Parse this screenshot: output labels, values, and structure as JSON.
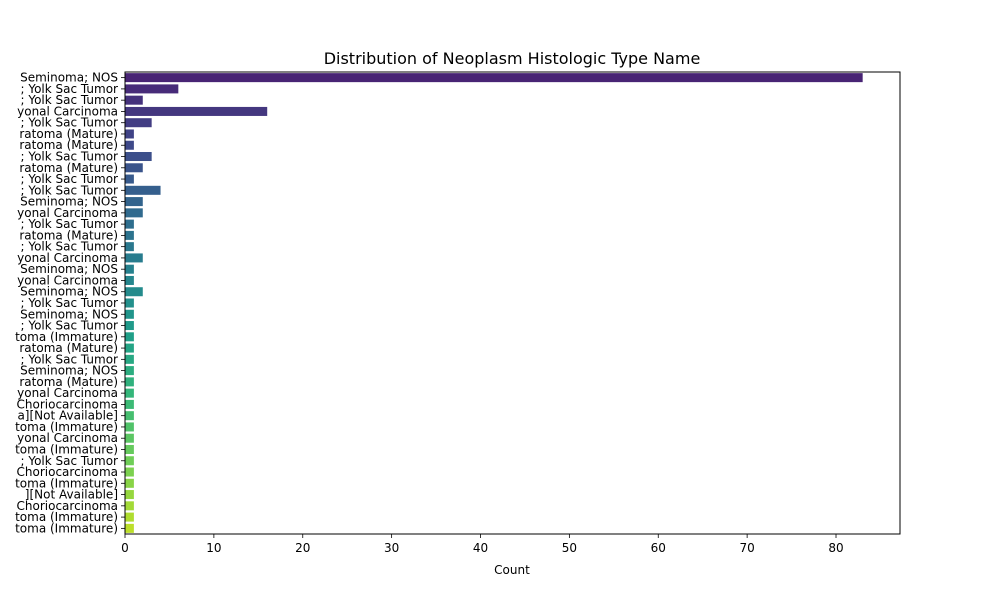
{
  "chart_data": {
    "type": "bar",
    "orientation": "horizontal",
    "title": "Distribution of Neoplasm Histologic Type Name",
    "xlabel": "Count",
    "ylabel": "",
    "xlim": [
      0,
      87.2
    ],
    "xticks": [
      0,
      10,
      20,
      30,
      40,
      50,
      60,
      70,
      80
    ],
    "grid": false,
    "legend": "none",
    "palette": "viridis",
    "categories": [
      "Seminoma; NOS",
      "; Yolk Sac Tumor",
      "; Yolk Sac Tumor",
      "yonal Carcinoma",
      "; Yolk Sac Tumor",
      "ratoma (Mature)",
      "ratoma (Mature)",
      "; Yolk Sac Tumor",
      "ratoma (Mature)",
      "; Yolk Sac Tumor",
      "; Yolk Sac Tumor",
      "Seminoma; NOS",
      "yonal Carcinoma",
      "; Yolk Sac Tumor",
      "ratoma (Mature)",
      "; Yolk Sac Tumor",
      "yonal Carcinoma",
      "Seminoma; NOS",
      "yonal Carcinoma",
      "Seminoma; NOS",
      "; Yolk Sac Tumor",
      "Seminoma; NOS",
      "; Yolk Sac Tumor",
      "toma (Immature)",
      "ratoma (Mature)",
      "; Yolk Sac Tumor",
      "Seminoma; NOS",
      "ratoma (Mature)",
      "yonal Carcinoma",
      "Choriocarcinoma",
      "a][Not Available]",
      "toma (Immature)",
      "yonal Carcinoma",
      "toma (Immature)",
      "; Yolk Sac Tumor",
      "Choriocarcinoma",
      "toma (Immature)",
      "][Not Available]",
      "Choriocarcinoma",
      "toma (Immature)",
      "toma (Immature)"
    ],
    "values": [
      83,
      6,
      2,
      16,
      3,
      1,
      1,
      3,
      2,
      1,
      4,
      2,
      2,
      1,
      1,
      1,
      2,
      1,
      1,
      2,
      1,
      1,
      1,
      1,
      1,
      1,
      1,
      1,
      1,
      1,
      1,
      1,
      1,
      1,
      1,
      1,
      1,
      1,
      1,
      1,
      1
    ]
  }
}
